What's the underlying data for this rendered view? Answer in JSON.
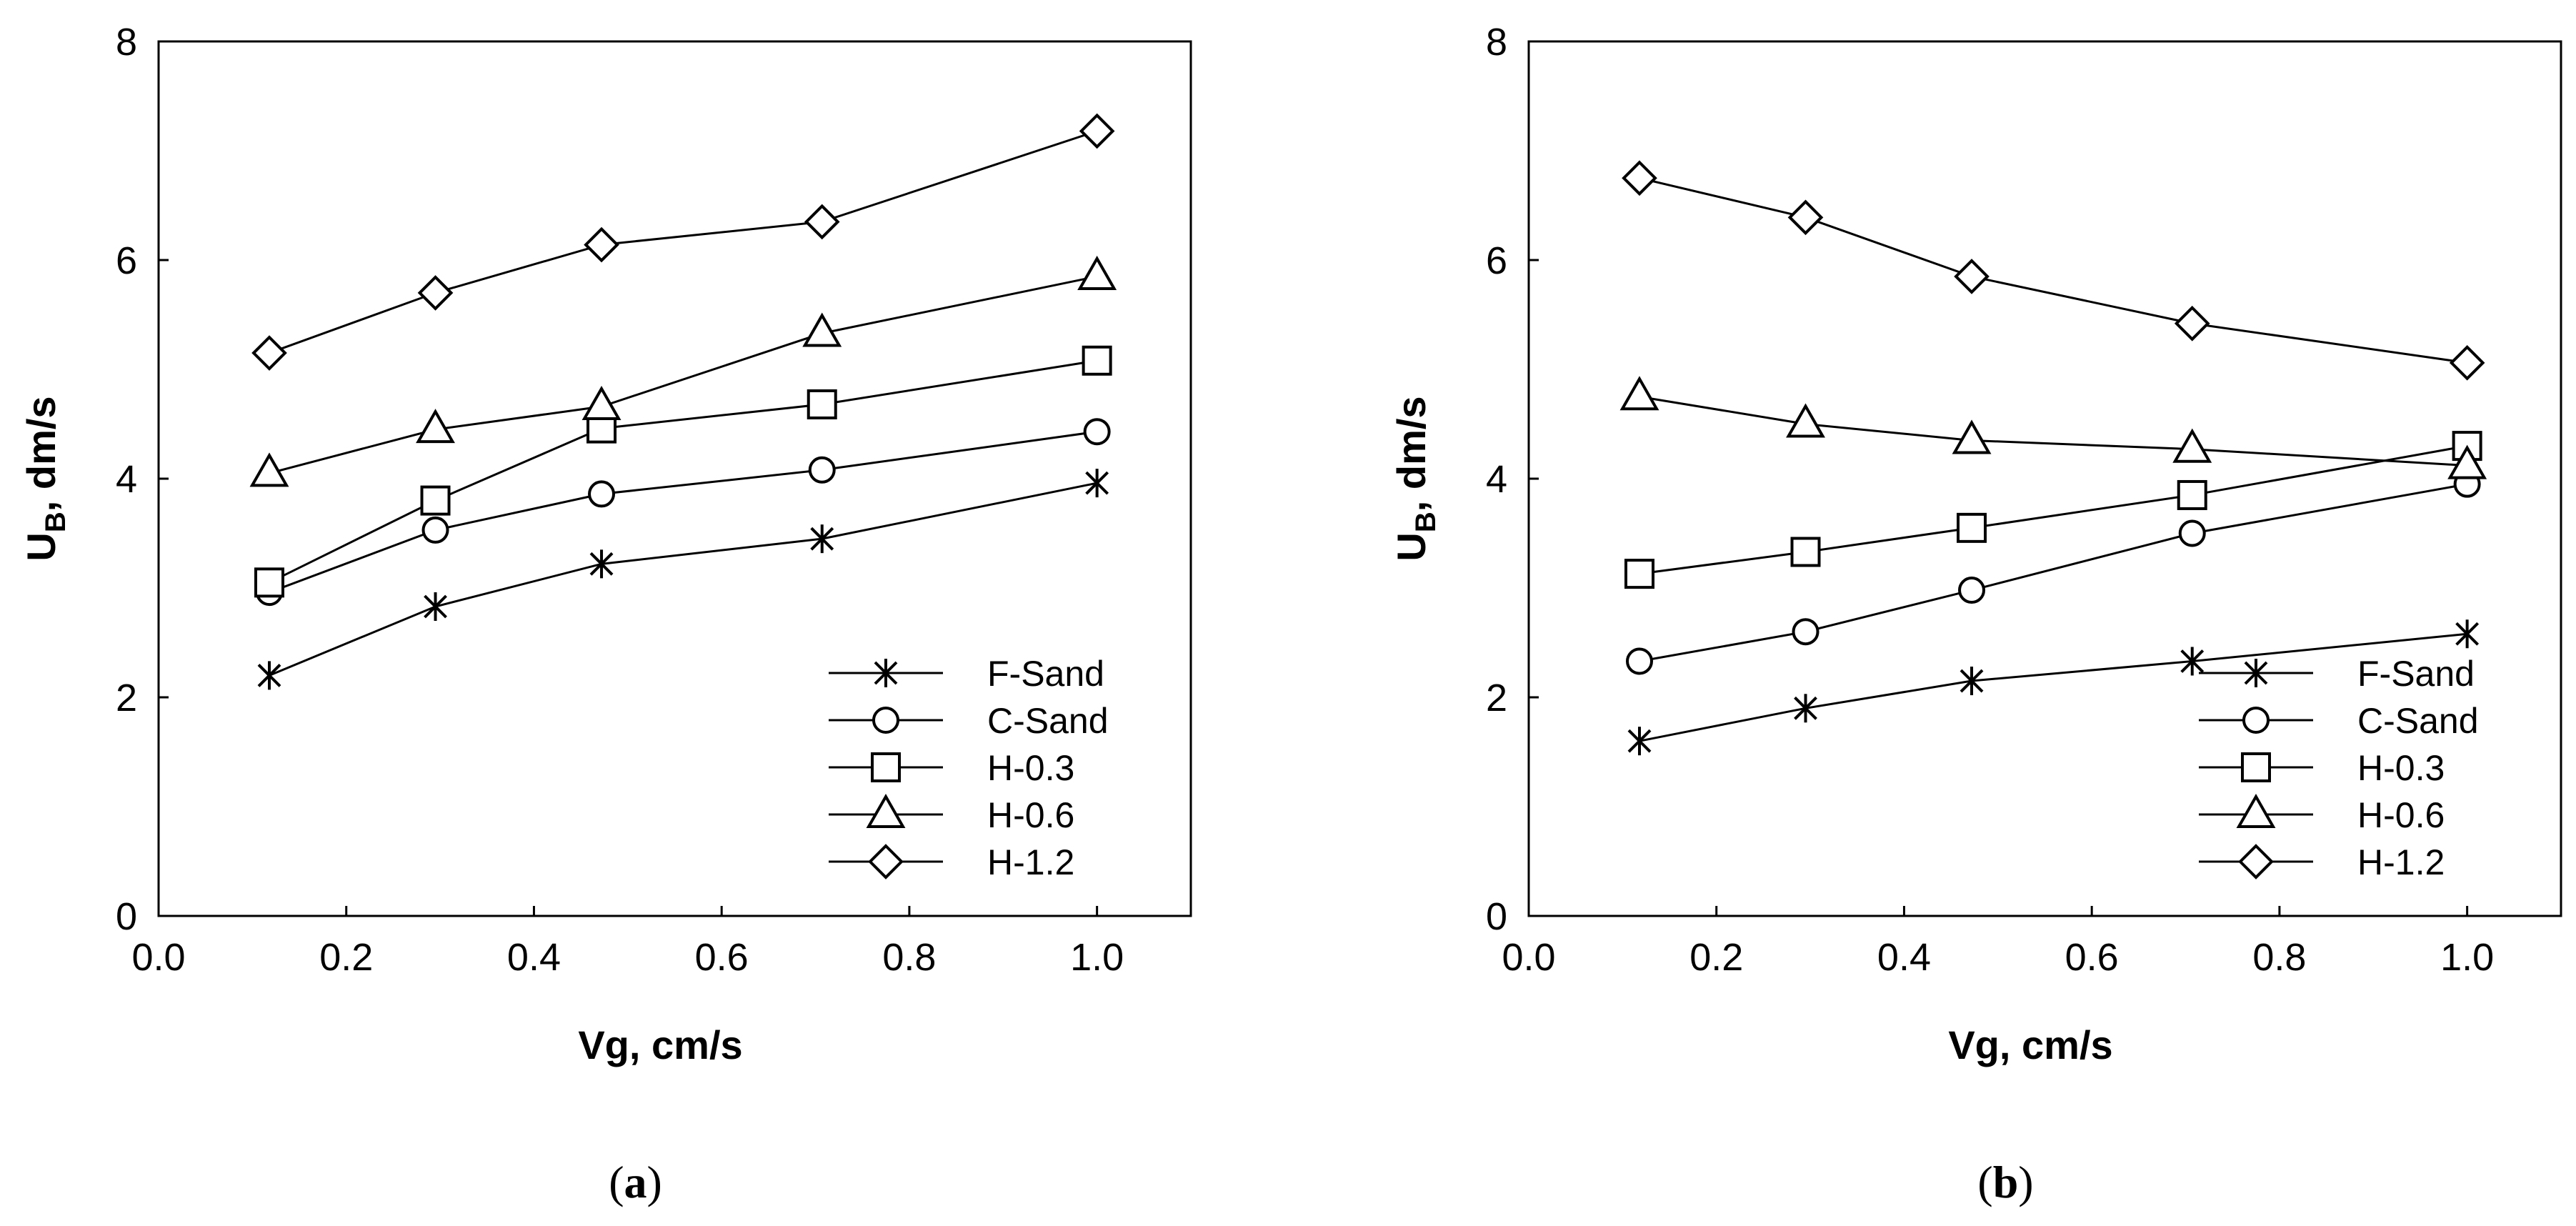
{
  "chart_data": [
    {
      "type": "line",
      "panel_label": "a",
      "xlabel": "Vg, cm/s",
      "ylabel_main": "U",
      "ylabel_sub": "B",
      "ylabel_rest": ", dm/s",
      "xlim": [
        0.0,
        1.1
      ],
      "ylim": [
        0,
        8
      ],
      "xticks": [
        "0.0",
        "0.2",
        "0.4",
        "0.6",
        "0.8",
        "1.0"
      ],
      "yticks": [
        "0",
        "2",
        "4",
        "6",
        "8"
      ],
      "x": [
        0.118,
        0.295,
        0.472,
        0.707,
        1.0
      ],
      "legend_position": "bottom-right",
      "series": [
        {
          "name": "F-Sand",
          "marker": "asterisk",
          "values": [
            2.2,
            2.83,
            3.22,
            3.45,
            3.96
          ]
        },
        {
          "name": "C-Sand",
          "marker": "circle",
          "values": [
            2.96,
            3.53,
            3.86,
            4.08,
            4.43
          ]
        },
        {
          "name": "H-0.3",
          "marker": "square",
          "values": [
            3.05,
            3.8,
            4.46,
            4.68,
            5.08
          ]
        },
        {
          "name": "H-0.6",
          "marker": "triangle",
          "values": [
            4.05,
            4.45,
            4.66,
            5.33,
            5.85
          ]
        },
        {
          "name": "H-1.2",
          "marker": "diamond",
          "values": [
            5.15,
            5.7,
            6.14,
            6.35,
            7.18
          ]
        }
      ]
    },
    {
      "type": "line",
      "panel_label": "b",
      "xlabel": "Vg, cm/s",
      "ylabel_main": "U",
      "ylabel_sub": "B",
      "ylabel_rest": ", dm/s",
      "xlim": [
        0.0,
        1.1
      ],
      "ylim": [
        0,
        8
      ],
      "xticks": [
        "0.0",
        "0.2",
        "0.4",
        "0.6",
        "0.8",
        "1.0"
      ],
      "yticks": [
        "0",
        "2",
        "4",
        "6",
        "8"
      ],
      "x": [
        0.118,
        0.295,
        0.472,
        0.707,
        1.0
      ],
      "legend_position": "bottom-right",
      "series": [
        {
          "name": "F-Sand",
          "marker": "asterisk",
          "values": [
            1.6,
            1.9,
            2.15,
            2.33,
            2.58
          ]
        },
        {
          "name": "C-Sand",
          "marker": "circle",
          "values": [
            2.33,
            2.6,
            2.98,
            3.5,
            3.95
          ]
        },
        {
          "name": "H-0.3",
          "marker": "square",
          "values": [
            3.13,
            3.33,
            3.55,
            3.85,
            4.3
          ]
        },
        {
          "name": "H-0.6",
          "marker": "triangle",
          "values": [
            4.75,
            4.5,
            4.35,
            4.27,
            4.12
          ]
        },
        {
          "name": "H-1.2",
          "marker": "diamond",
          "values": [
            6.75,
            6.39,
            5.85,
            5.42,
            5.06
          ]
        }
      ]
    }
  ]
}
